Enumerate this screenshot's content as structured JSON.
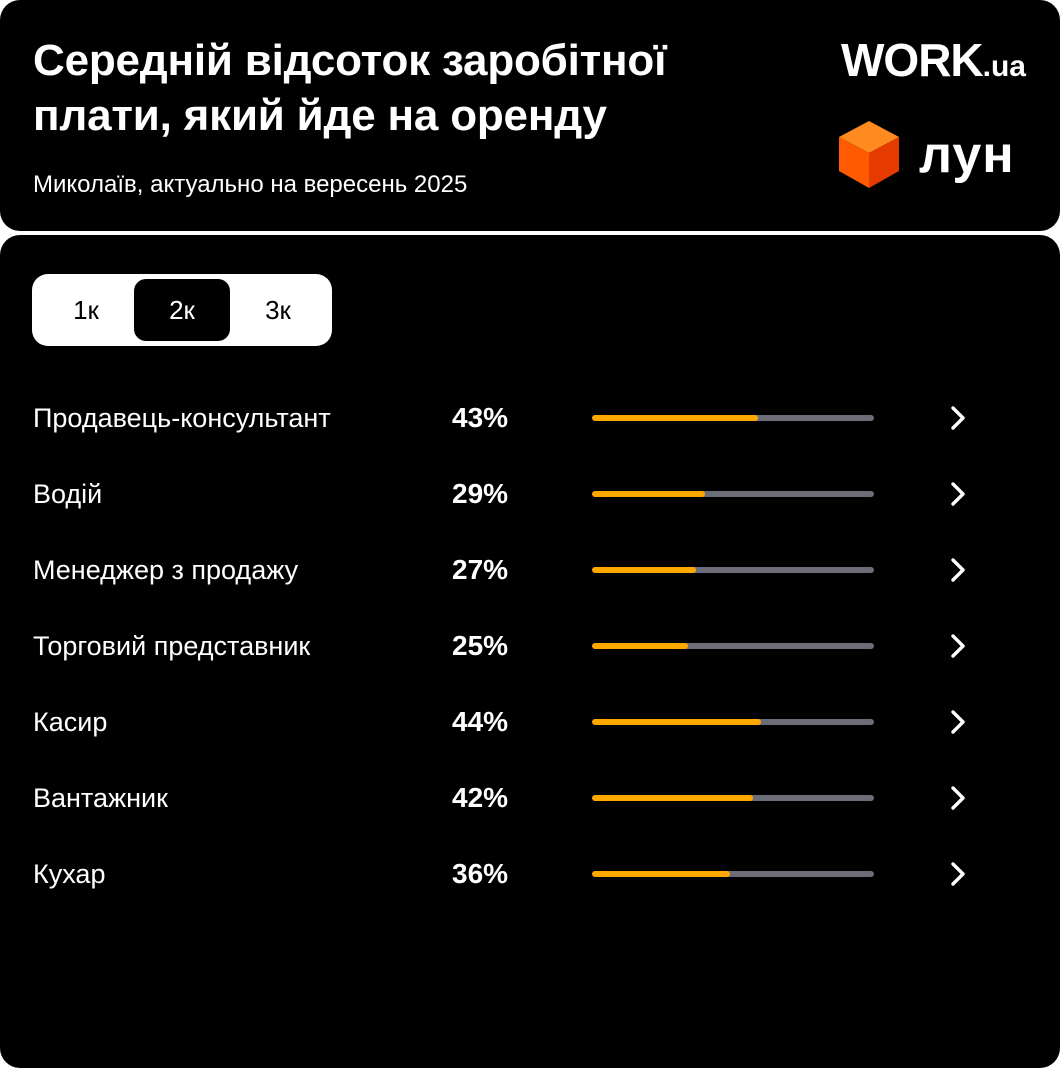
{
  "header": {
    "title": "Середній відсоток заробітної плати, який йде на оренду",
    "subtitle": "Миколаїв, актуально на вересень 2025",
    "logo_work": {
      "main": "WORK",
      "suffix": ".ua"
    },
    "logo_lun": {
      "text": "лун",
      "icon": "orange-cube-icon"
    }
  },
  "tabs": [
    {
      "label": "1к",
      "active": false
    },
    {
      "label": "2к",
      "active": true
    },
    {
      "label": "3к",
      "active": false
    }
  ],
  "colors": {
    "background": "#000000",
    "bar_fill": "#ffa800",
    "bar_track": "#6d6d7a",
    "text": "#ffffff"
  },
  "rows": [
    {
      "label": "Продавець-консультант",
      "percent_label": "43%",
      "fill": 0.59
    },
    {
      "label": "Водій",
      "percent_label": "29%",
      "fill": 0.4
    },
    {
      "label": "Менеджер з продажу",
      "percent_label": "27%",
      "fill": 0.37
    },
    {
      "label": "Торговий представник",
      "percent_label": "25%",
      "fill": 0.34
    },
    {
      "label": "Касир",
      "percent_label": "44%",
      "fill": 0.6
    },
    {
      "label": "Вантажник",
      "percent_label": "42%",
      "fill": 0.57
    },
    {
      "label": "Кухар",
      "percent_label": "36%",
      "fill": 0.49
    }
  ]
}
